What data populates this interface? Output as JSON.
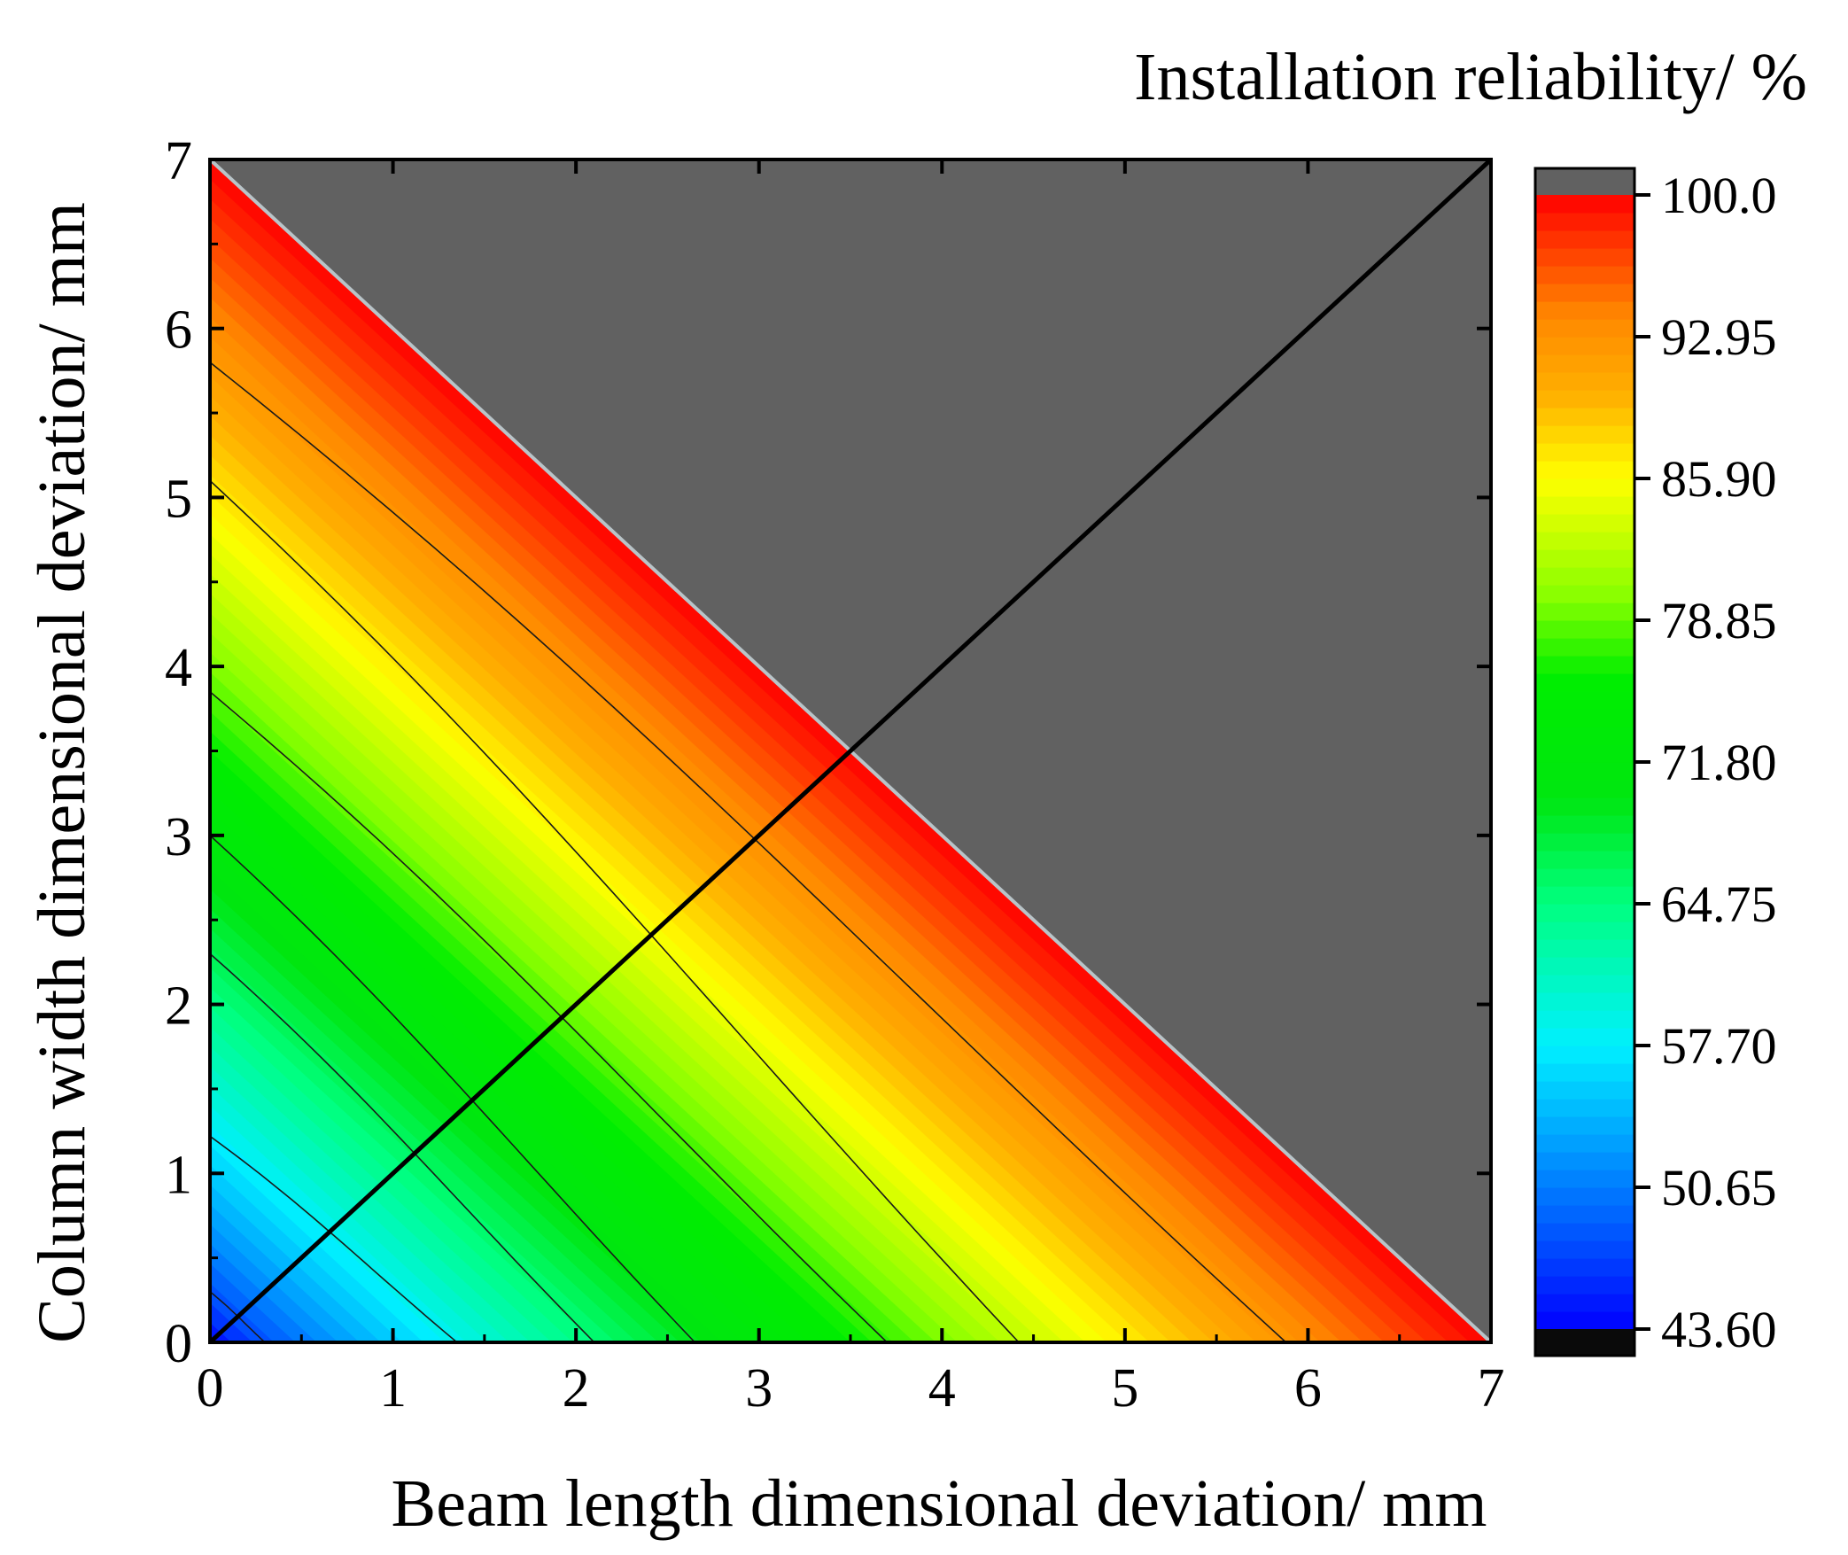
{
  "chart_data": {
    "type": "heatmap",
    "subtype": "filled-contour",
    "colorbar_title": "Installation reliability/ %",
    "xlabel": "Beam length dimensional deviation/ mm",
    "ylabel": "Column width dimensional deviation/ mm",
    "xlim": [
      0,
      7
    ],
    "ylim": [
      0,
      7
    ],
    "x_ticks": [
      "0",
      "1",
      "2",
      "3",
      "4",
      "5",
      "6",
      "7"
    ],
    "y_ticks": [
      "0",
      "1",
      "2",
      "3",
      "4",
      "5",
      "6",
      "7"
    ],
    "colorbar_ticks": [
      "100.0",
      "92.95",
      "85.90",
      "78.85",
      "71.80",
      "64.75",
      "57.70",
      "50.65",
      "43.60"
    ],
    "colorbar_range": [
      43.6,
      100.0
    ],
    "value_at_origin": 43.6,
    "value_on_boundary": 100.0,
    "boundary": "x + y = 7",
    "above_range_color": "#616161",
    "below_range_color": "#0a0a0a",
    "contour_line_color": "#1a1a1a",
    "diagonal_line": {
      "from": [
        0,
        0
      ],
      "to": [
        7,
        7
      ],
      "color": "#000000"
    },
    "contour_lines": [
      {
        "y0": 5.8,
        "x_end": 5.88
      },
      {
        "y0": 5.1,
        "x_end": 4.42
      },
      {
        "y0": 3.85,
        "x_end": 3.7
      },
      {
        "y0": 3.0,
        "x_end": 2.65
      },
      {
        "y0": 2.3,
        "x_end": 2.1
      },
      {
        "y0": 1.22,
        "x_end": 1.35
      },
      {
        "y0": 0.3,
        "x_end": 0.3
      }
    ],
    "color_stops": [
      {
        "v": 43.6,
        "color": "#0000ff"
      },
      {
        "v": 48.0,
        "color": "#0050ff"
      },
      {
        "v": 53.0,
        "color": "#00a2ff"
      },
      {
        "v": 57.7,
        "color": "#00f0ff"
      },
      {
        "v": 64.75,
        "color": "#00ff80"
      },
      {
        "v": 70.0,
        "color": "#00e610"
      },
      {
        "v": 76.0,
        "color": "#00ee00"
      },
      {
        "v": 80.0,
        "color": "#88ff00"
      },
      {
        "v": 85.9,
        "color": "#ffff00"
      },
      {
        "v": 90.0,
        "color": "#ffb000"
      },
      {
        "v": 94.0,
        "color": "#ff8800"
      },
      {
        "v": 100.0,
        "color": "#ff0000"
      }
    ]
  }
}
